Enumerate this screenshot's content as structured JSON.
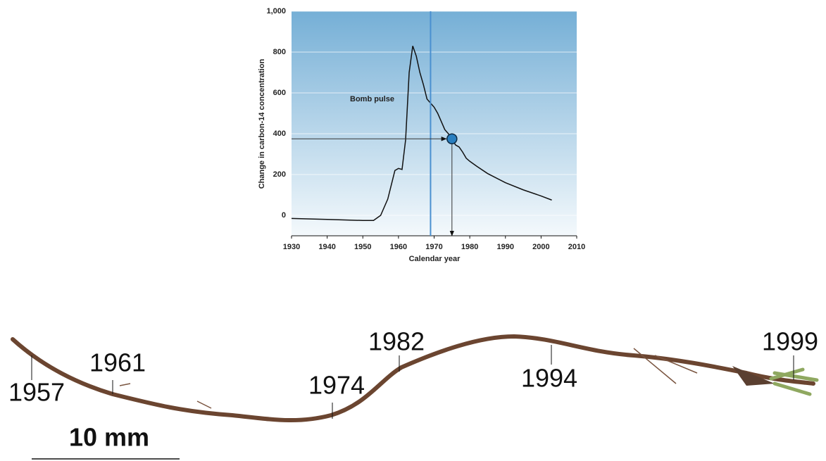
{
  "chart_data": {
    "type": "line",
    "annotation": "Bomb pulse",
    "xlabel": "Calendar year",
    "ylabel": "Change in carbon-14 concentration",
    "x": [
      1930,
      1940,
      1950,
      1953,
      1955,
      1957,
      1959,
      1960,
      1961,
      1962,
      1963,
      1964,
      1965,
      1966,
      1967,
      1968,
      1969,
      1970,
      1971,
      1972,
      1973,
      1974,
      1975,
      1976,
      1977,
      1978,
      1979,
      1980,
      1982,
      1985,
      1990,
      1995,
      2000,
      2003
    ],
    "values": [
      -15,
      -20,
      -25,
      -25,
      0,
      80,
      220,
      230,
      225,
      370,
      700,
      830,
      780,
      700,
      640,
      570,
      550,
      530,
      500,
      460,
      420,
      400,
      375,
      345,
      335,
      310,
      280,
      265,
      240,
      205,
      160,
      125,
      95,
      75
    ],
    "color": "#111111",
    "xlim": [
      1930,
      2010
    ],
    "xticks": [
      1930,
      1940,
      1950,
      1960,
      1970,
      1980,
      1990,
      2000,
      2010
    ],
    "ylim": [
      -100,
      1000
    ],
    "yticks": [
      0,
      200,
      400,
      600,
      800,
      {
        "value": 1000,
        "label": "1,000"
      }
    ],
    "grid": true,
    "vline": 1969,
    "vline_color": "#4a90d0",
    "marker": {
      "x": 1975,
      "y": 375,
      "color": "#2a7fc0"
    }
  },
  "moss": {
    "labels": [
      "1957",
      "1961",
      "1974",
      "1982",
      "1994",
      "1999"
    ],
    "scale_bar": "10 mm"
  }
}
